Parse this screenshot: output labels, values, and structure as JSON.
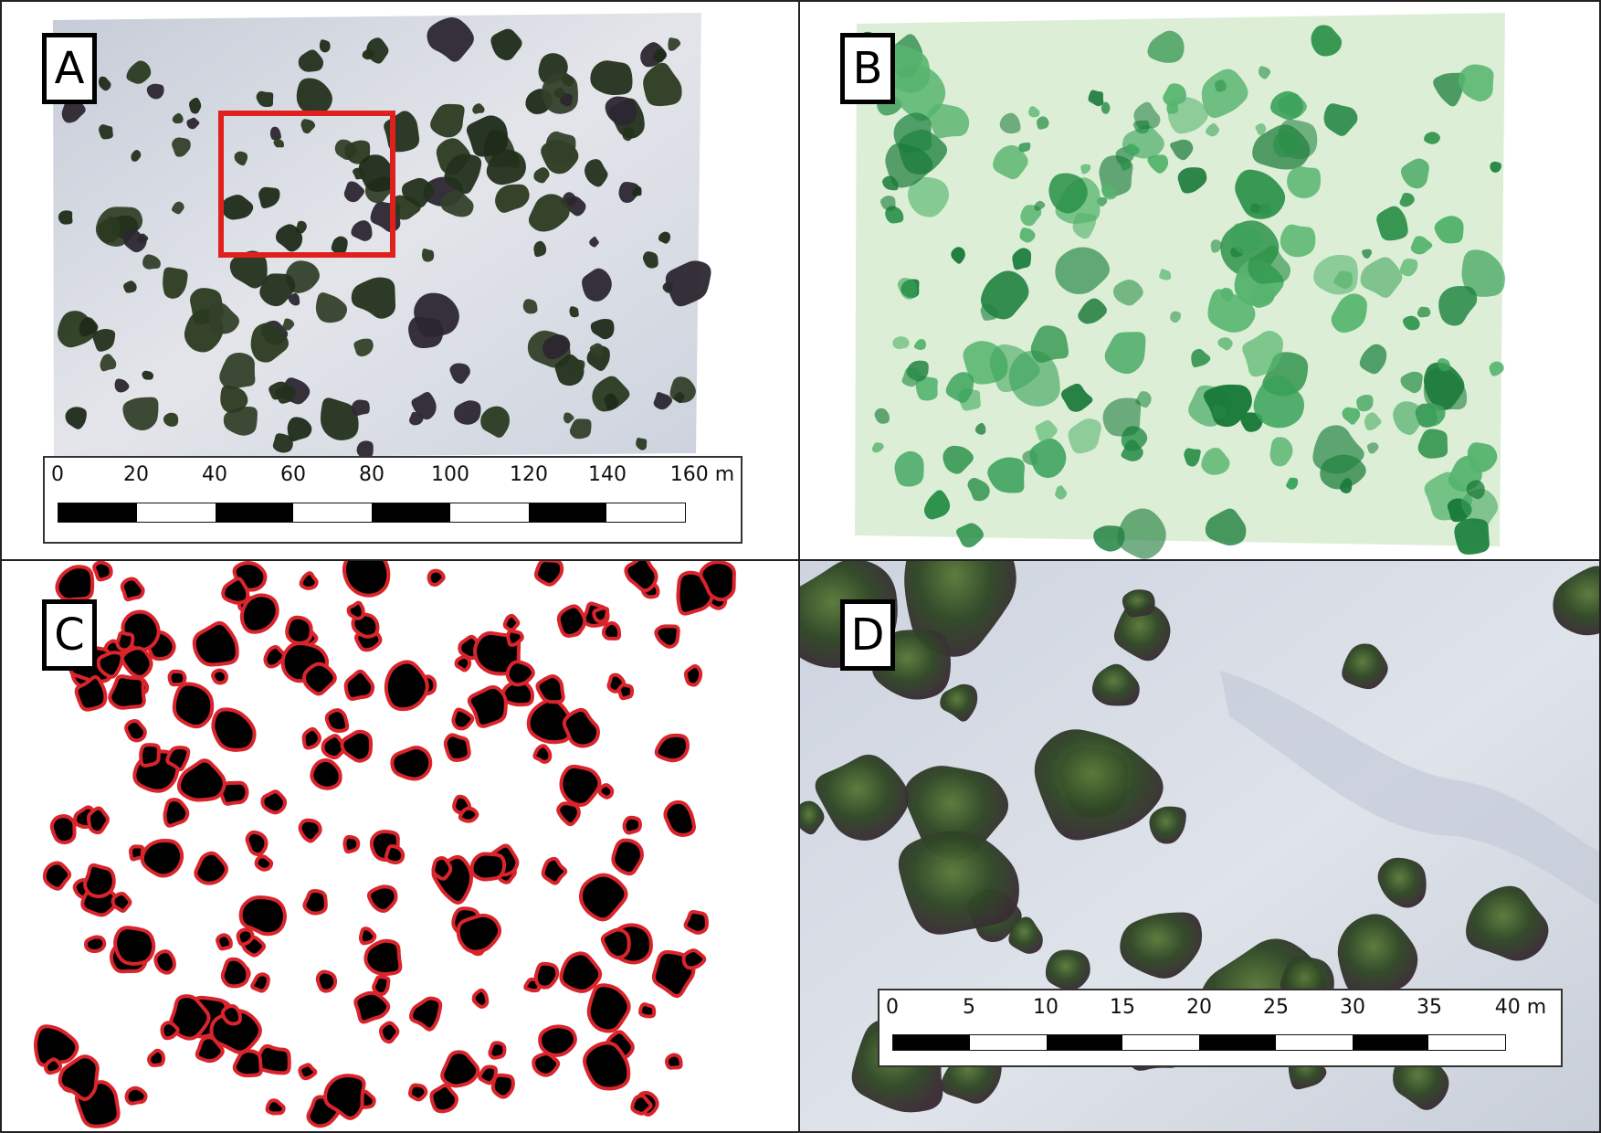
{
  "panels": {
    "a": {
      "label": "A",
      "scale": {
        "ticks": [
          "0",
          "20",
          "40",
          "60",
          "80",
          "100",
          "120",
          "140",
          "160 m"
        ]
      },
      "highlight_color": "#e0201c"
    },
    "b": {
      "label": "B"
    },
    "c": {
      "label": "C",
      "outline_color": "#d9242c"
    },
    "d": {
      "label": "D",
      "scale": {
        "ticks": [
          "0",
          "5",
          "10",
          "15",
          "20",
          "25",
          "30",
          "35",
          "40 m"
        ]
      }
    }
  },
  "colors": {
    "sand": "#d7dde6",
    "shrub_dark": "#1d2a18",
    "vegetation_index_low": "#dcefd6",
    "vegetation_index_high": "#1b7a3a"
  }
}
